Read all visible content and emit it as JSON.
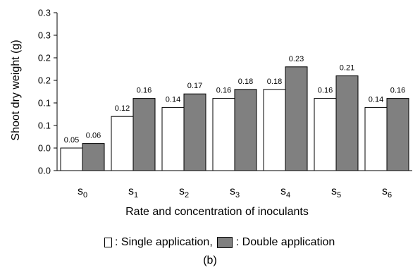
{
  "chart_data": {
    "type": "bar",
    "ylabel": "Shoot dry weight  (g)",
    "xlabel": "Rate and concentration of inoculants",
    "categories": [
      {
        "base": "s",
        "sub": "0"
      },
      {
        "base": "s",
        "sub": "1"
      },
      {
        "base": "s",
        "sub": "2"
      },
      {
        "base": "s",
        "sub": "3"
      },
      {
        "base": "s",
        "sub": "4"
      },
      {
        "base": "s",
        "sub": "5"
      },
      {
        "base": "s",
        "sub": "6"
      }
    ],
    "yticks": [
      "0.0",
      "0.0",
      "0.1",
      "0.1",
      "0.2",
      "0.2",
      "0.3",
      "0.3"
    ],
    "ylim": [
      0,
      0.35
    ],
    "grid": false,
    "series": [
      {
        "name": "Single application",
        "color": "#ffffff",
        "values": [
          0.05,
          0.12,
          0.14,
          0.16,
          0.18,
          0.16,
          0.14
        ],
        "labels": [
          "0.05",
          "0.12",
          "0.14",
          "0.16",
          "0.18",
          "0.16",
          "0.14"
        ]
      },
      {
        "name": "Double application",
        "color": "#808080",
        "values": [
          0.06,
          0.16,
          0.17,
          0.18,
          0.23,
          0.21,
          0.16
        ],
        "labels": [
          "0.06",
          "0.16",
          "0.17",
          "0.18",
          "0.23",
          "0.21",
          "0.16"
        ]
      }
    ]
  },
  "legend": {
    "single_label": ": Single application,",
    "double_label": ": Double application"
  },
  "panel_label": "(b)"
}
